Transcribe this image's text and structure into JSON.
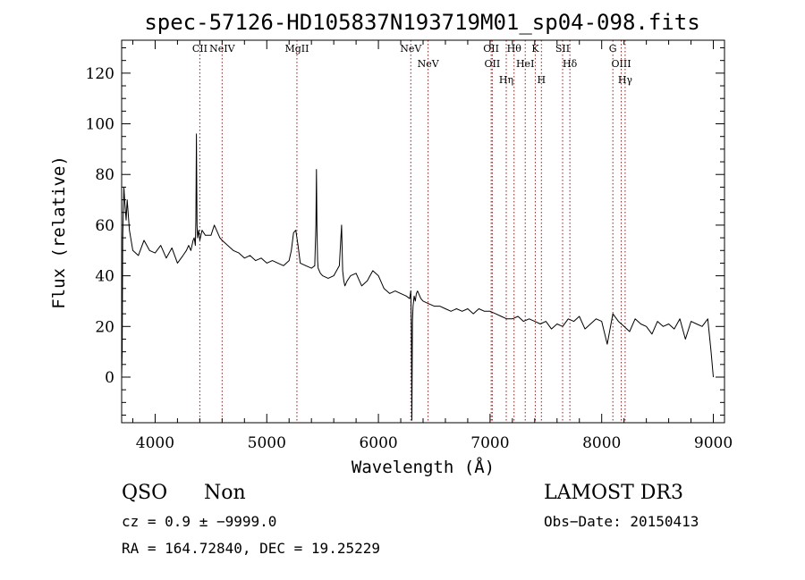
{
  "chart_data": {
    "type": "line",
    "title": "spec-57126-HD105837N193719M01_sp04-098.fits",
    "xlabel": "Wavelength (Å)",
    "ylabel": "Flux (relative)",
    "xlim": [
      3700,
      9100
    ],
    "ylim": [
      -18,
      133
    ],
    "xticks": [
      4000,
      5000,
      6000,
      7000,
      8000,
      9000
    ],
    "yticks": [
      0,
      20,
      40,
      60,
      80,
      100,
      120
    ],
    "grid": false,
    "series": [
      {
        "name": "spectrum",
        "x": [
          3700,
          3705,
          3710,
          3720,
          3730,
          3740,
          3750,
          3770,
          3800,
          3850,
          3900,
          3950,
          4000,
          4050,
          4100,
          4150,
          4200,
          4250,
          4280,
          4300,
          4320,
          4340,
          4350,
          4360,
          4365,
          4370,
          4375,
          4380,
          4390,
          4400,
          4420,
          4450,
          4500,
          4530,
          4550,
          4580,
          4600,
          4650,
          4700,
          4750,
          4800,
          4850,
          4900,
          4950,
          5000,
          5050,
          5100,
          5150,
          5200,
          5220,
          5240,
          5260,
          5280,
          5300,
          5350,
          5400,
          5430,
          5440,
          5445,
          5450,
          5455,
          5460,
          5480,
          5500,
          5550,
          5600,
          5650,
          5670,
          5680,
          5690,
          5700,
          5720,
          5750,
          5800,
          5850,
          5900,
          5950,
          6000,
          6050,
          6100,
          6150,
          6200,
          6250,
          6280,
          6290,
          6295,
          6300,
          6305,
          6310,
          6320,
          6330,
          6340,
          6350,
          6380,
          6400,
          6450,
          6500,
          6550,
          6600,
          6650,
          6700,
          6750,
          6800,
          6850,
          6900,
          6950,
          7000,
          7050,
          7100,
          7150,
          7200,
          7250,
          7300,
          7350,
          7400,
          7450,
          7500,
          7550,
          7600,
          7650,
          7700,
          7750,
          7800,
          7850,
          7900,
          7950,
          8000,
          8050,
          8100,
          8150,
          8200,
          8250,
          8300,
          8350,
          8400,
          8450,
          8500,
          8550,
          8600,
          8650,
          8700,
          8750,
          8800,
          8850,
          8900,
          8950,
          8980,
          9000
        ],
        "values": [
          0,
          10,
          55,
          75,
          68,
          62,
          70,
          58,
          50,
          48,
          54,
          50,
          49,
          52,
          47,
          51,
          45,
          48,
          50,
          52,
          50,
          54,
          55,
          52,
          62,
          96,
          60,
          55,
          58,
          54,
          58,
          56,
          56,
          60,
          58,
          55,
          54,
          52,
          50,
          49,
          47,
          48,
          46,
          47,
          45,
          46,
          45,
          44,
          46,
          50,
          57,
          58,
          52,
          45,
          44,
          43,
          44,
          60,
          82,
          58,
          46,
          43,
          41,
          40,
          39,
          40,
          44,
          60,
          42,
          38,
          36,
          38,
          40,
          41,
          36,
          38,
          42,
          40,
          35,
          33,
          34,
          33,
          32,
          31,
          34,
          20,
          -17,
          22,
          28,
          32,
          30,
          33,
          34,
          31,
          30,
          29,
          28,
          28,
          27,
          26,
          27,
          26,
          27,
          25,
          27,
          26,
          26,
          25,
          24,
          23,
          23,
          24,
          22,
          23,
          22,
          21,
          22,
          19,
          21,
          20,
          23,
          22,
          24,
          19,
          21,
          23,
          22,
          13,
          25,
          22,
          20,
          18,
          23,
          21,
          20,
          17,
          22,
          20,
          21,
          19,
          23,
          15,
          22,
          21,
          20,
          23,
          10,
          0
        ]
      }
    ],
    "emission_lines_top": [
      {
        "label": "CII",
        "x": 4400
      },
      {
        "label": "NeIV",
        "x": 4600
      },
      {
        "label": "MgII",
        "x": 5270
      },
      {
        "label": "NeV",
        "x": 6290
      },
      {
        "label": "NeV",
        "x": 6445
      },
      {
        "label": "OII",
        "x": 7020
      },
      {
        "label": "OII",
        "x": 7010
      },
      {
        "label": "Hη",
        "x": 7145
      },
      {
        "label": "Hθ",
        "x": 7215
      },
      {
        "label": "HeI",
        "x": 7315
      },
      {
        "label": "K",
        "x": 7405
      },
      {
        "label": "H",
        "x": 7460
      },
      {
        "label": "SII",
        "x": 7650
      },
      {
        "label": "Hδ",
        "x": 7715
      },
      {
        "label": "G",
        "x": 8100
      },
      {
        "label": "OIII",
        "x": 8175
      },
      {
        "label": "Hγ",
        "x": 8210
      }
    ]
  },
  "info": {
    "class": "QSO",
    "subclass": "Non",
    "survey": "LAMOST DR3",
    "cz": "cz = 0.9 ± −9999.0",
    "obs_date": "Obs−Date: 20150413",
    "coords": "RA = 164.72840, DEC =  19.25229"
  }
}
